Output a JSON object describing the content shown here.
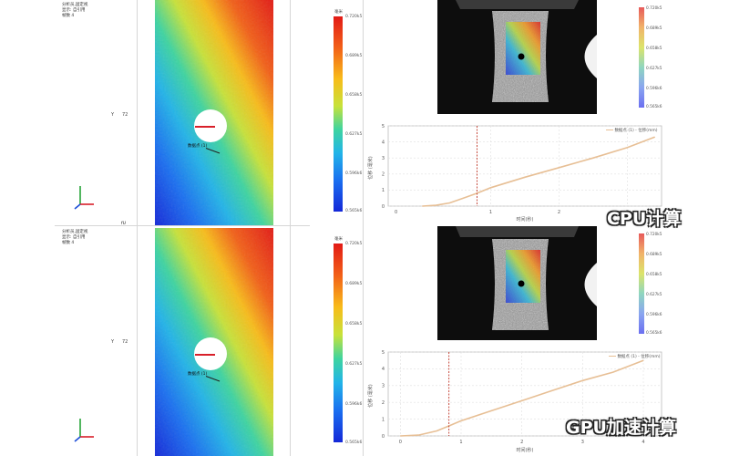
{
  "panels": [
    {
      "info_lines": [
        "分析员,固定视",
        "显示: 自引用",
        "帧数 4"
      ],
      "y_label": "Y",
      "y_value": "72",
      "probe_label": "数据点 (1)",
      "colorbar": {
        "title": "毫米",
        "ticks": [
          "0.720k5",
          "0.689k5",
          "0.658k5",
          "0.627k5",
          "0.596k6",
          "0.565k6"
        ]
      },
      "mini_colorbar_ticks": [
        "0.720k5",
        "0.689k5",
        "0.658k5",
        "0.627k5",
        "0.596k6",
        "0.565k6"
      ],
      "chart": {
        "legend": "数据点 (1) - 位移(mm)",
        "ylabel": "位移 (毫米)",
        "xlabel": "时间(秒)",
        "yticks": [
          "5",
          "4",
          "3",
          "2",
          "1",
          "0"
        ],
        "xticks": [
          "1",
          "2",
          "3"
        ],
        "x_start_label": "0"
      },
      "caption": "CPU计算"
    },
    {
      "info_lines": [
        "分析员,固定视",
        "显示: 自引用",
        "帧数 4"
      ],
      "y_label": "Y",
      "y_value": "72",
      "probe_label": "数据点 (1)",
      "colorbar": {
        "title": "毫米",
        "ticks": [
          "0.720k5",
          "0.689k5",
          "0.658k5",
          "0.627k5",
          "0.596k6",
          "0.565k6"
        ]
      },
      "mini_colorbar_ticks": [
        "0.720k5",
        "0.689k5",
        "0.658k5",
        "0.627k5",
        "0.596k6",
        "0.565k6"
      ],
      "chart": {
        "legend": "数据点 (1) - 位移(mm)",
        "ylabel": "位移 (毫米)",
        "xlabel": "时间(秒)",
        "yticks": [
          "5",
          "4",
          "3",
          "2",
          "1",
          "0"
        ],
        "xticks": [
          "0",
          "1",
          "2",
          "3",
          "4"
        ],
        "x_start_label": ""
      },
      "caption": "GPU加速计算"
    }
  ],
  "divider_label": "fU",
  "colors": {
    "accent_red": "#d8202a",
    "curve": "#e7bf95",
    "cursor": "#c0392b"
  },
  "chart_data": [
    {
      "type": "line",
      "series": [
        {
          "name": "数据点 (1) - 位移(mm)",
          "x": [
            0,
            0.2,
            0.4,
            0.6,
            0.8,
            1.0,
            1.5,
            2.0,
            2.5,
            3.0,
            3.4
          ],
          "y": [
            0,
            0.05,
            0.2,
            0.5,
            0.8,
            1.15,
            1.8,
            2.4,
            3.0,
            3.65,
            4.3
          ]
        }
      ],
      "cursor_x": 0.8,
      "xlim": [
        -0.5,
        3.5
      ],
      "ylim": [
        0,
        5
      ],
      "xlabel": "时间(秒)",
      "ylabel": "位移 (毫米)",
      "grid": true,
      "legend_position": "top-right"
    },
    {
      "type": "line",
      "series": [
        {
          "name": "数据点 (1) - 位移(mm)",
          "x": [
            0,
            0.3,
            0.6,
            0.8,
            1.0,
            1.5,
            2.0,
            2.5,
            3.0,
            3.5,
            4.0
          ],
          "y": [
            0,
            0.05,
            0.3,
            0.6,
            0.9,
            1.5,
            2.1,
            2.7,
            3.3,
            3.8,
            4.5
          ]
        }
      ],
      "cursor_x": 0.8,
      "xlim": [
        -0.2,
        4.3
      ],
      "ylim": [
        0,
        5
      ],
      "xlabel": "时间(秒)",
      "ylabel": "位移 (毫米)",
      "grid": true,
      "legend_position": "top-right"
    }
  ]
}
